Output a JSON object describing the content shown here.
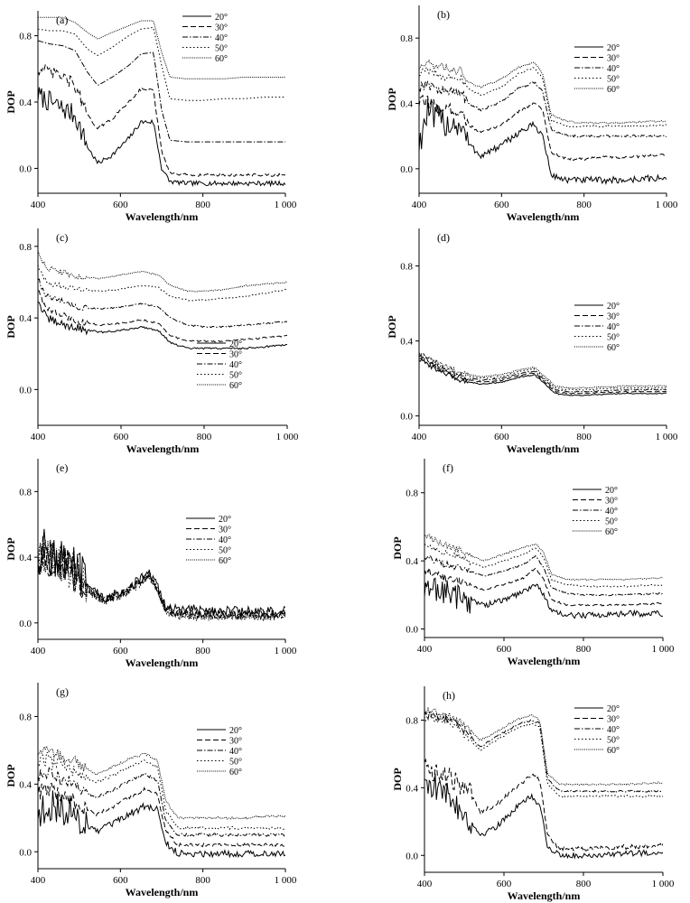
{
  "figure": {
    "xlabel": "Wavelength/nm",
    "ylabel": "DOP",
    "x_ticks": [
      "400",
      "600",
      "800",
      "1 000"
    ],
    "y_ticks": [
      "0.0",
      "0.4",
      "0.8"
    ],
    "legend_labels": [
      "20°",
      "30°",
      "40°",
      "50°",
      "60°"
    ],
    "line_styles": [
      "solid",
      "dashed",
      "dash-dot",
      "dotted",
      "dense-dotted"
    ],
    "line_color": "#000000"
  },
  "chart_data": [
    {
      "type": "line",
      "panel_label": "(a)",
      "xlabel": "Wavelength/nm",
      "ylabel": "DOP",
      "xlim": [
        400,
        1000
      ],
      "ylim": [
        -0.15,
        0.95
      ],
      "legend_position": "top-right",
      "x": [
        400,
        430,
        460,
        490,
        520,
        545,
        580,
        620,
        650,
        680,
        700,
        720,
        760,
        800,
        850,
        900,
        950,
        1000
      ],
      "series": [
        {
          "name": "20°",
          "values": [
            0.44,
            0.4,
            0.36,
            0.32,
            0.13,
            0.03,
            0.08,
            0.18,
            0.28,
            0.28,
            0.0,
            -0.08,
            -0.09,
            -0.09,
            -0.09,
            -0.09,
            -0.09,
            -0.09
          ],
          "noise": 0.04
        },
        {
          "name": "30°",
          "values": [
            0.6,
            0.58,
            0.55,
            0.5,
            0.32,
            0.24,
            0.3,
            0.4,
            0.48,
            0.47,
            0.1,
            -0.03,
            -0.04,
            -0.04,
            -0.04,
            -0.04,
            -0.04,
            -0.04
          ],
          "noise": 0.025
        },
        {
          "name": "40°",
          "values": [
            0.77,
            0.75,
            0.74,
            0.71,
            0.58,
            0.5,
            0.55,
            0.62,
            0.69,
            0.7,
            0.35,
            0.17,
            0.16,
            0.16,
            0.16,
            0.16,
            0.16,
            0.16
          ],
          "noise": 0
        },
        {
          "name": "50°",
          "values": [
            0.84,
            0.83,
            0.83,
            0.81,
            0.72,
            0.68,
            0.73,
            0.8,
            0.84,
            0.85,
            0.62,
            0.42,
            0.41,
            0.41,
            0.42,
            0.42,
            0.43,
            0.43
          ],
          "noise": 0
        },
        {
          "name": "60°",
          "values": [
            0.91,
            0.91,
            0.91,
            0.88,
            0.82,
            0.78,
            0.82,
            0.86,
            0.89,
            0.89,
            0.7,
            0.55,
            0.54,
            0.54,
            0.54,
            0.55,
            0.55,
            0.55
          ],
          "noise": 0
        }
      ]
    },
    {
      "type": "line",
      "panel_label": "(b)",
      "xlabel": "Wavelength/nm",
      "ylabel": "DOP",
      "xlim": [
        400,
        1000
      ],
      "ylim": [
        -0.15,
        1.0
      ],
      "legend_position": "top-right",
      "x": [
        400,
        420,
        440,
        470,
        500,
        520,
        550,
        600,
        640,
        680,
        700,
        720,
        760,
        800,
        850,
        900,
        950,
        1000
      ],
      "series": [
        {
          "name": "20°",
          "values": [
            0.15,
            0.35,
            0.3,
            0.28,
            0.27,
            0.15,
            0.08,
            0.14,
            0.22,
            0.27,
            0.2,
            -0.04,
            -0.07,
            -0.07,
            -0.07,
            -0.07,
            -0.06,
            -0.06
          ],
          "noise": 0.06
        },
        {
          "name": "30°",
          "values": [
            0.4,
            0.42,
            0.38,
            0.36,
            0.36,
            0.27,
            0.22,
            0.27,
            0.35,
            0.4,
            0.36,
            0.1,
            0.06,
            0.06,
            0.07,
            0.07,
            0.08,
            0.09
          ],
          "noise": 0.025
        },
        {
          "name": "40°",
          "values": [
            0.5,
            0.52,
            0.49,
            0.47,
            0.47,
            0.4,
            0.36,
            0.41,
            0.49,
            0.53,
            0.47,
            0.24,
            0.2,
            0.2,
            0.2,
            0.2,
            0.2,
            0.2
          ],
          "noise": 0.02
        },
        {
          "name": "50°",
          "values": [
            0.58,
            0.6,
            0.58,
            0.56,
            0.56,
            0.49,
            0.45,
            0.5,
            0.58,
            0.62,
            0.55,
            0.3,
            0.26,
            0.26,
            0.26,
            0.26,
            0.26,
            0.27
          ],
          "noise": 0.015
        },
        {
          "name": "60°",
          "values": [
            0.62,
            0.65,
            0.63,
            0.61,
            0.6,
            0.53,
            0.5,
            0.55,
            0.62,
            0.65,
            0.58,
            0.33,
            0.29,
            0.28,
            0.28,
            0.28,
            0.29,
            0.29
          ],
          "noise": 0.015
        }
      ]
    },
    {
      "type": "line",
      "panel_label": "(c)",
      "xlabel": "Wavelength/nm",
      "ylabel": "DOP",
      "xlim": [
        400,
        1000
      ],
      "ylim": [
        -0.2,
        0.9
      ],
      "legend_position": "bottom-right",
      "x": [
        400,
        420,
        450,
        500,
        550,
        600,
        650,
        690,
        720,
        760,
        800,
        850,
        900,
        950,
        1000
      ],
      "series": [
        {
          "name": "20°",
          "values": [
            0.5,
            0.4,
            0.37,
            0.34,
            0.32,
            0.33,
            0.35,
            0.33,
            0.26,
            0.23,
            0.23,
            0.23,
            0.23,
            0.24,
            0.25
          ],
          "noise": 0.015
        },
        {
          "name": "30°",
          "values": [
            0.56,
            0.45,
            0.42,
            0.38,
            0.36,
            0.37,
            0.39,
            0.37,
            0.3,
            0.27,
            0.27,
            0.27,
            0.28,
            0.29,
            0.3
          ],
          "noise": 0.012
        },
        {
          "name": "40°",
          "values": [
            0.62,
            0.52,
            0.5,
            0.46,
            0.45,
            0.46,
            0.48,
            0.46,
            0.4,
            0.36,
            0.35,
            0.35,
            0.36,
            0.37,
            0.38
          ],
          "noise": 0.01
        },
        {
          "name": "50°",
          "values": [
            0.7,
            0.6,
            0.58,
            0.56,
            0.55,
            0.56,
            0.58,
            0.57,
            0.52,
            0.5,
            0.5,
            0.51,
            0.52,
            0.54,
            0.56
          ],
          "noise": 0.01
        },
        {
          "name": "60°",
          "values": [
            0.78,
            0.68,
            0.66,
            0.63,
            0.62,
            0.64,
            0.66,
            0.64,
            0.58,
            0.55,
            0.55,
            0.56,
            0.58,
            0.59,
            0.6
          ],
          "noise": 0.01
        }
      ]
    },
    {
      "type": "line",
      "panel_label": "(d)",
      "xlabel": "Wavelength/nm",
      "ylabel": "DOP",
      "xlim": [
        400,
        1000
      ],
      "ylim": [
        -0.05,
        1.0
      ],
      "legend_position": "top-right",
      "x": [
        400,
        450,
        500,
        550,
        600,
        650,
        680,
        700,
        730,
        760,
        800,
        900,
        1000
      ],
      "series": [
        {
          "name": "20°",
          "values": [
            0.3,
            0.24,
            0.19,
            0.17,
            0.18,
            0.21,
            0.22,
            0.18,
            0.12,
            0.11,
            0.11,
            0.12,
            0.12
          ],
          "noise": 0.008
        },
        {
          "name": "30°",
          "values": [
            0.31,
            0.25,
            0.2,
            0.18,
            0.19,
            0.22,
            0.23,
            0.19,
            0.13,
            0.12,
            0.12,
            0.13,
            0.13
          ],
          "noise": 0.008
        },
        {
          "name": "40°",
          "values": [
            0.32,
            0.26,
            0.21,
            0.19,
            0.2,
            0.23,
            0.24,
            0.2,
            0.14,
            0.13,
            0.13,
            0.14,
            0.14
          ],
          "noise": 0.008
        },
        {
          "name": "50°",
          "values": [
            0.33,
            0.27,
            0.22,
            0.2,
            0.21,
            0.24,
            0.25,
            0.21,
            0.15,
            0.14,
            0.14,
            0.15,
            0.15
          ],
          "noise": 0.008
        },
        {
          "name": "60°",
          "values": [
            0.34,
            0.28,
            0.23,
            0.21,
            0.22,
            0.25,
            0.26,
            0.22,
            0.16,
            0.15,
            0.15,
            0.16,
            0.16
          ],
          "noise": 0.008
        }
      ]
    },
    {
      "type": "line",
      "panel_label": "(e)",
      "xlabel": "Wavelength/nm",
      "ylabel": "DOP",
      "xlim": [
        400,
        1000
      ],
      "ylim": [
        -0.1,
        1.0
      ],
      "legend_position": "right",
      "x": [
        400,
        420,
        440,
        470,
        500,
        530,
        560,
        600,
        640,
        670,
        690,
        710,
        740,
        800,
        900,
        1000
      ],
      "series": [
        {
          "name": "20°",
          "values": [
            0.4,
            0.45,
            0.4,
            0.36,
            0.3,
            0.2,
            0.15,
            0.18,
            0.25,
            0.3,
            0.22,
            0.1,
            0.08,
            0.08,
            0.07,
            0.07
          ],
          "noise": 0.09
        },
        {
          "name": "30°",
          "values": [
            0.38,
            0.42,
            0.38,
            0.35,
            0.28,
            0.18,
            0.14,
            0.17,
            0.24,
            0.29,
            0.2,
            0.08,
            0.06,
            0.05,
            0.05,
            0.05
          ],
          "noise": 0.08
        },
        {
          "name": "40°",
          "values": [
            0.39,
            0.43,
            0.39,
            0.35,
            0.29,
            0.19,
            0.14,
            0.17,
            0.24,
            0.3,
            0.21,
            0.08,
            0.06,
            0.05,
            0.05,
            0.05
          ],
          "noise": 0.08
        },
        {
          "name": "50°",
          "values": [
            0.37,
            0.41,
            0.37,
            0.34,
            0.28,
            0.18,
            0.13,
            0.16,
            0.23,
            0.29,
            0.2,
            0.07,
            0.05,
            0.04,
            0.04,
            0.04
          ],
          "noise": 0.07
        },
        {
          "name": "60°",
          "values": [
            0.38,
            0.42,
            0.38,
            0.34,
            0.28,
            0.18,
            0.13,
            0.16,
            0.23,
            0.29,
            0.2,
            0.07,
            0.05,
            0.04,
            0.04,
            0.04
          ],
          "noise": 0.07
        }
      ]
    },
    {
      "type": "line",
      "panel_label": "(f)",
      "xlabel": "Wavelength/nm",
      "ylabel": "DOP",
      "xlim": [
        400,
        1000
      ],
      "ylim": [
        -0.05,
        1.0
      ],
      "legend_position": "top-right",
      "x": [
        400,
        420,
        450,
        500,
        550,
        600,
        650,
        680,
        700,
        720,
        760,
        800,
        900,
        1000
      ],
      "series": [
        {
          "name": "20°",
          "values": [
            0.2,
            0.25,
            0.22,
            0.18,
            0.14,
            0.17,
            0.22,
            0.27,
            0.2,
            0.1,
            0.08,
            0.08,
            0.09,
            0.09
          ],
          "noise": 0.05
        },
        {
          "name": "30°",
          "values": [
            0.35,
            0.33,
            0.3,
            0.27,
            0.23,
            0.26,
            0.3,
            0.36,
            0.29,
            0.17,
            0.14,
            0.14,
            0.14,
            0.15
          ],
          "noise": 0.015
        },
        {
          "name": "40°",
          "values": [
            0.42,
            0.41,
            0.38,
            0.35,
            0.31,
            0.34,
            0.38,
            0.43,
            0.36,
            0.24,
            0.21,
            0.2,
            0.2,
            0.21
          ],
          "noise": 0.012
        },
        {
          "name": "50°",
          "values": [
            0.5,
            0.48,
            0.45,
            0.41,
            0.36,
            0.4,
            0.44,
            0.48,
            0.42,
            0.29,
            0.26,
            0.25,
            0.25,
            0.26
          ],
          "noise": 0.012
        },
        {
          "name": "60°",
          "values": [
            0.55,
            0.53,
            0.5,
            0.45,
            0.4,
            0.44,
            0.48,
            0.5,
            0.45,
            0.32,
            0.29,
            0.29,
            0.29,
            0.3
          ],
          "noise": 0.012
        }
      ]
    },
    {
      "type": "line",
      "panel_label": "(g)",
      "xlabel": "Wavelength/nm",
      "ylabel": "DOP",
      "xlim": [
        400,
        1000
      ],
      "ylim": [
        -0.1,
        1.0
      ],
      "legend_position": "top-right",
      "x": [
        400,
        420,
        450,
        500,
        540,
        580,
        620,
        660,
        690,
        710,
        740,
        800,
        850,
        900,
        950,
        1000
      ],
      "series": [
        {
          "name": "20°",
          "values": [
            0.2,
            0.28,
            0.26,
            0.2,
            0.12,
            0.16,
            0.22,
            0.27,
            0.25,
            0.05,
            -0.01,
            -0.01,
            -0.01,
            -0.01,
            -0.01,
            -0.01
          ],
          "noise": 0.06
        },
        {
          "name": "30°",
          "values": [
            0.35,
            0.37,
            0.34,
            0.28,
            0.22,
            0.26,
            0.32,
            0.37,
            0.34,
            0.12,
            0.04,
            0.04,
            0.04,
            0.04,
            0.04,
            0.04
          ],
          "noise": 0.03
        },
        {
          "name": "40°",
          "values": [
            0.45,
            0.47,
            0.44,
            0.38,
            0.32,
            0.36,
            0.42,
            0.46,
            0.42,
            0.18,
            0.1,
            0.1,
            0.1,
            0.1,
            0.1,
            0.1
          ],
          "noise": 0.025
        },
        {
          "name": "50°",
          "values": [
            0.52,
            0.55,
            0.52,
            0.47,
            0.41,
            0.45,
            0.5,
            0.54,
            0.5,
            0.24,
            0.14,
            0.14,
            0.14,
            0.14,
            0.14,
            0.14
          ],
          "noise": 0.025
        },
        {
          "name": "60°",
          "values": [
            0.58,
            0.6,
            0.58,
            0.52,
            0.46,
            0.5,
            0.55,
            0.58,
            0.54,
            0.3,
            0.2,
            0.2,
            0.2,
            0.2,
            0.21,
            0.21
          ],
          "noise": 0.02
        }
      ]
    },
    {
      "type": "line",
      "panel_label": "(h)",
      "xlabel": "Wavelength/nm",
      "ylabel": "DOP",
      "xlim": [
        400,
        1000
      ],
      "ylim": [
        -0.1,
        1.0
      ],
      "legend_position": "top-right",
      "x": [
        400,
        430,
        470,
        510,
        540,
        580,
        630,
        670,
        690,
        710,
        740,
        800,
        900,
        1000
      ],
      "series": [
        {
          "name": "20°",
          "values": [
            0.45,
            0.4,
            0.33,
            0.22,
            0.12,
            0.17,
            0.28,
            0.35,
            0.3,
            0.05,
            0.0,
            0.0,
            0.01,
            0.02
          ],
          "noise": 0.05
        },
        {
          "name": "30°",
          "values": [
            0.55,
            0.48,
            0.45,
            0.38,
            0.26,
            0.3,
            0.4,
            0.48,
            0.45,
            0.12,
            0.04,
            0.04,
            0.05,
            0.06
          ],
          "noise": 0.04
        },
        {
          "name": "40°",
          "values": [
            0.83,
            0.82,
            0.8,
            0.72,
            0.64,
            0.7,
            0.77,
            0.8,
            0.78,
            0.45,
            0.38,
            0.38,
            0.38,
            0.38
          ],
          "noise": 0.015
        },
        {
          "name": "50°",
          "values": [
            0.82,
            0.8,
            0.78,
            0.7,
            0.62,
            0.68,
            0.75,
            0.78,
            0.76,
            0.42,
            0.35,
            0.35,
            0.35,
            0.35
          ],
          "noise": 0.015
        },
        {
          "name": "60°",
          "values": [
            0.86,
            0.84,
            0.82,
            0.75,
            0.68,
            0.73,
            0.8,
            0.83,
            0.8,
            0.48,
            0.42,
            0.42,
            0.42,
            0.43
          ],
          "noise": 0.015
        }
      ]
    }
  ]
}
